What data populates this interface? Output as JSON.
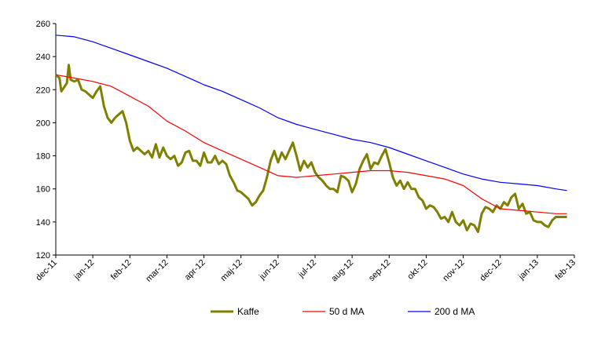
{
  "chart_data": {
    "type": "line",
    "title": "",
    "xlabel": "",
    "ylabel": "",
    "ylim": [
      120,
      260
    ],
    "yticks": [
      120,
      140,
      160,
      180,
      200,
      220,
      240,
      260
    ],
    "xlim": [
      0,
      14
    ],
    "xticks": [
      "dec-11",
      "jan-12",
      "feb-12",
      "mar-12",
      "apr-12",
      "maj-12",
      "jun-12",
      "jul-12",
      "aug-12",
      "sep-12",
      "okt-12",
      "nov-12",
      "dec-12",
      "jan-13",
      "feb-13"
    ],
    "grid": false,
    "legend_position": "bottom",
    "series": [
      {
        "name": "Kaffe",
        "color": "#808000",
        "width": 3,
        "points": [
          [
            0.0,
            229
          ],
          [
            0.1,
            227
          ],
          [
            0.15,
            219
          ],
          [
            0.3,
            224
          ],
          [
            0.35,
            235
          ],
          [
            0.4,
            226
          ],
          [
            0.5,
            225
          ],
          [
            0.6,
            226
          ],
          [
            0.7,
            220
          ],
          [
            0.8,
            219
          ],
          [
            0.9,
            217
          ],
          [
            1.0,
            215
          ],
          [
            1.1,
            219
          ],
          [
            1.2,
            222
          ],
          [
            1.3,
            210
          ],
          [
            1.4,
            203
          ],
          [
            1.5,
            200
          ],
          [
            1.6,
            203
          ],
          [
            1.7,
            205
          ],
          [
            1.8,
            207
          ],
          [
            1.9,
            200
          ],
          [
            2.0,
            189
          ],
          [
            2.1,
            183
          ],
          [
            2.2,
            185
          ],
          [
            2.3,
            183
          ],
          [
            2.4,
            181
          ],
          [
            2.5,
            183
          ],
          [
            2.6,
            179
          ],
          [
            2.7,
            187
          ],
          [
            2.8,
            179
          ],
          [
            2.9,
            185
          ],
          [
            3.0,
            180
          ],
          [
            3.1,
            178
          ],
          [
            3.2,
            180
          ],
          [
            3.3,
            174
          ],
          [
            3.4,
            176
          ],
          [
            3.5,
            182
          ],
          [
            3.6,
            183
          ],
          [
            3.7,
            177
          ],
          [
            3.8,
            177
          ],
          [
            3.9,
            174
          ],
          [
            4.0,
            182
          ],
          [
            4.1,
            176
          ],
          [
            4.2,
            176
          ],
          [
            4.3,
            180
          ],
          [
            4.4,
            175
          ],
          [
            4.5,
            177
          ],
          [
            4.6,
            175
          ],
          [
            4.7,
            168
          ],
          [
            4.8,
            164
          ],
          [
            4.9,
            159
          ],
          [
            5.0,
            158
          ],
          [
            5.1,
            156
          ],
          [
            5.2,
            154
          ],
          [
            5.3,
            150
          ],
          [
            5.4,
            152
          ],
          [
            5.5,
            156
          ],
          [
            5.6,
            159
          ],
          [
            5.7,
            167
          ],
          [
            5.8,
            177
          ],
          [
            5.9,
            183
          ],
          [
            6.0,
            176
          ],
          [
            6.1,
            182
          ],
          [
            6.2,
            178
          ],
          [
            6.3,
            183
          ],
          [
            6.4,
            188
          ],
          [
            6.5,
            180
          ],
          [
            6.6,
            171
          ],
          [
            6.7,
            177
          ],
          [
            6.8,
            173
          ],
          [
            6.9,
            176
          ],
          [
            7.0,
            170
          ],
          [
            7.1,
            167
          ],
          [
            7.2,
            165
          ],
          [
            7.3,
            162
          ],
          [
            7.4,
            160
          ],
          [
            7.5,
            160
          ],
          [
            7.6,
            158
          ],
          [
            7.7,
            168
          ],
          [
            7.8,
            167
          ],
          [
            7.9,
            165
          ],
          [
            8.0,
            158
          ],
          [
            8.1,
            163
          ],
          [
            8.2,
            172
          ],
          [
            8.3,
            177
          ],
          [
            8.4,
            181
          ],
          [
            8.5,
            172
          ],
          [
            8.6,
            176
          ],
          [
            8.7,
            175
          ],
          [
            8.8,
            180
          ],
          [
            8.9,
            184
          ],
          [
            9.0,
            176
          ],
          [
            9.1,
            167
          ],
          [
            9.2,
            162
          ],
          [
            9.3,
            165
          ],
          [
            9.4,
            160
          ],
          [
            9.5,
            164
          ],
          [
            9.6,
            160
          ],
          [
            9.7,
            160
          ],
          [
            9.8,
            155
          ],
          [
            9.9,
            153
          ],
          [
            10.0,
            148
          ],
          [
            10.1,
            150
          ],
          [
            10.2,
            149
          ],
          [
            10.3,
            146
          ],
          [
            10.4,
            142
          ],
          [
            10.5,
            143
          ],
          [
            10.6,
            140
          ],
          [
            10.7,
            146
          ],
          [
            10.8,
            140
          ],
          [
            10.9,
            138
          ],
          [
            11.0,
            141
          ],
          [
            11.1,
            135
          ],
          [
            11.2,
            139
          ],
          [
            11.3,
            138
          ],
          [
            11.4,
            134
          ],
          [
            11.5,
            145
          ],
          [
            11.6,
            149
          ],
          [
            11.7,
            148
          ],
          [
            11.8,
            146
          ],
          [
            11.9,
            150
          ],
          [
            12.0,
            148
          ],
          [
            12.1,
            152
          ],
          [
            12.2,
            150
          ],
          [
            12.3,
            155
          ],
          [
            12.4,
            157
          ],
          [
            12.5,
            148
          ],
          [
            12.6,
            151
          ],
          [
            12.7,
            145
          ],
          [
            12.8,
            146
          ],
          [
            12.9,
            141
          ],
          [
            13.0,
            140
          ],
          [
            13.1,
            140
          ],
          [
            13.2,
            138
          ],
          [
            13.3,
            137
          ],
          [
            13.4,
            141
          ],
          [
            13.5,
            143
          ],
          [
            13.6,
            143
          ],
          [
            13.7,
            143
          ],
          [
            13.8,
            143
          ]
        ]
      },
      {
        "name": "50 d MA",
        "color": "#ff0000",
        "width": 1.2,
        "points": [
          [
            0.0,
            229
          ],
          [
            0.5,
            227
          ],
          [
            1.0,
            225
          ],
          [
            1.5,
            222
          ],
          [
            2.0,
            216
          ],
          [
            2.5,
            210
          ],
          [
            3.0,
            201
          ],
          [
            3.5,
            195
          ],
          [
            4.0,
            188
          ],
          [
            4.5,
            183
          ],
          [
            5.0,
            178
          ],
          [
            5.5,
            173
          ],
          [
            6.0,
            168
          ],
          [
            6.5,
            167
          ],
          [
            7.0,
            168
          ],
          [
            7.5,
            169
          ],
          [
            8.0,
            170
          ],
          [
            8.5,
            171
          ],
          [
            9.0,
            171
          ],
          [
            9.5,
            170
          ],
          [
            10.0,
            168
          ],
          [
            10.5,
            166
          ],
          [
            11.0,
            162
          ],
          [
            11.5,
            154
          ],
          [
            12.0,
            148
          ],
          [
            12.5,
            147
          ],
          [
            13.0,
            146
          ],
          [
            13.5,
            145
          ],
          [
            13.8,
            145
          ]
        ]
      },
      {
        "name": "200 d MA",
        "color": "#0000ff",
        "width": 1.2,
        "points": [
          [
            0.0,
            253
          ],
          [
            0.5,
            252
          ],
          [
            1.0,
            249
          ],
          [
            1.5,
            245
          ],
          [
            2.0,
            241
          ],
          [
            2.5,
            237
          ],
          [
            3.0,
            233
          ],
          [
            3.5,
            228
          ],
          [
            4.0,
            223
          ],
          [
            4.5,
            219
          ],
          [
            5.0,
            214
          ],
          [
            5.5,
            209
          ],
          [
            6.0,
            203
          ],
          [
            6.5,
            199
          ],
          [
            7.0,
            196
          ],
          [
            7.5,
            193
          ],
          [
            8.0,
            190
          ],
          [
            8.5,
            188
          ],
          [
            9.0,
            185
          ],
          [
            9.5,
            181
          ],
          [
            10.0,
            177
          ],
          [
            10.5,
            173
          ],
          [
            11.0,
            169
          ],
          [
            11.5,
            166
          ],
          [
            12.0,
            164
          ],
          [
            12.5,
            163
          ],
          [
            13.0,
            162
          ],
          [
            13.5,
            160
          ],
          [
            13.8,
            159
          ]
        ]
      }
    ]
  }
}
